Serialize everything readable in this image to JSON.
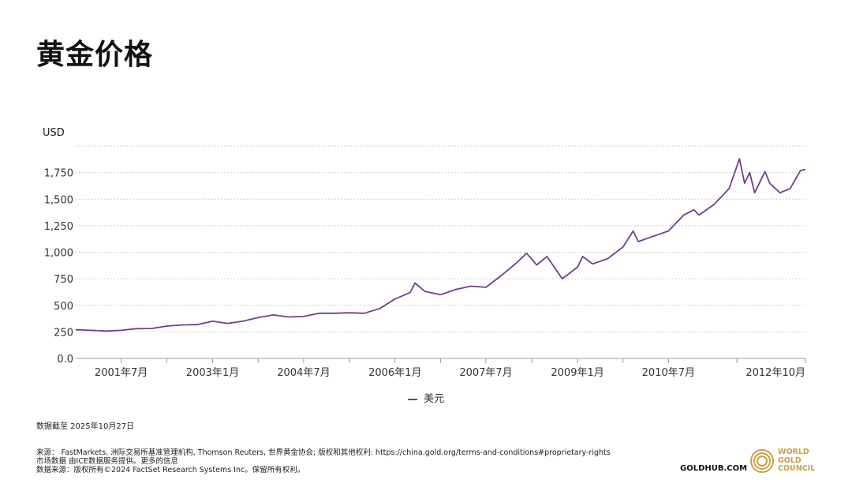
{
  "page": {
    "title": "黄金价格",
    "as_of": "数据截至 2025年10月27日",
    "footer_lines": [
      "来源： FastMarkets, 洲际交易所基准管理机构, Thomson Reuters, 世界黄金协会; 版权和其他权利: https://china.gold.org/terms-and-conditions#proprietary-rights",
      "市场数据 由ICE数据服务提供。更多的信息",
      "数据来源：版权所有©2024 FactSet Research Systems Inc。保留所有权利。"
    ],
    "brand": "GOLDHUB.COM",
    "logo_text": [
      "WORLD",
      "GOLD",
      "COUNCIL"
    ],
    "colors": {
      "series": "#6f3f8f",
      "gold": "#c9a043"
    }
  },
  "chart_data": {
    "type": "line",
    "ylabel": "USD",
    "ylim": [
      0,
      2000
    ],
    "yticks": [
      {
        "value": 0,
        "label": "0.0"
      },
      {
        "value": 250,
        "label": "250"
      },
      {
        "value": 500,
        "label": "500"
      },
      {
        "value": 750,
        "label": "750"
      },
      {
        "value": 1000,
        "label": "1,000"
      },
      {
        "value": 1250,
        "label": "1,250"
      },
      {
        "value": 1500,
        "label": "1,500"
      },
      {
        "value": 1750,
        "label": "1,750"
      }
    ],
    "xlim": [
      "2000-10-01",
      "2012-10-01"
    ],
    "xticks": [
      {
        "date": "2001-07-01",
        "label": "2001年7月"
      },
      {
        "date": "2003-01-01",
        "label": "2003年1月"
      },
      {
        "date": "2004-07-01",
        "label": "2004年7月"
      },
      {
        "date": "2006-01-01",
        "label": "2006年1月"
      },
      {
        "date": "2007-07-01",
        "label": "2007年7月"
      },
      {
        "date": "2009-01-01",
        "label": "2009年1月"
      },
      {
        "date": "2010-07-01",
        "label": "2010年7月"
      },
      {
        "date": "2012-10-01",
        "label": "2012年10月"
      }
    ],
    "grid": true,
    "legend_position": "bottom-center",
    "series": [
      {
        "name": "美元",
        "color": "#6f3f8f",
        "points": [
          [
            "2000-10-01",
            270
          ],
          [
            "2001-01-01",
            265
          ],
          [
            "2001-04-01",
            258
          ],
          [
            "2001-07-01",
            265
          ],
          [
            "2001-10-01",
            280
          ],
          [
            "2002-01-01",
            282
          ],
          [
            "2002-04-01",
            305
          ],
          [
            "2002-07-01",
            315
          ],
          [
            "2002-10-01",
            318
          ],
          [
            "2003-01-01",
            350
          ],
          [
            "2003-04-01",
            330
          ],
          [
            "2003-07-01",
            350
          ],
          [
            "2003-10-01",
            385
          ],
          [
            "2004-01-01",
            410
          ],
          [
            "2004-04-01",
            390
          ],
          [
            "2004-07-01",
            395
          ],
          [
            "2004-10-01",
            425
          ],
          [
            "2005-01-01",
            425
          ],
          [
            "2005-04-01",
            430
          ],
          [
            "2005-07-01",
            425
          ],
          [
            "2005-10-01",
            470
          ],
          [
            "2006-01-01",
            560
          ],
          [
            "2006-04-01",
            620
          ],
          [
            "2006-05-01",
            710
          ],
          [
            "2006-07-01",
            630
          ],
          [
            "2006-10-01",
            600
          ],
          [
            "2007-01-01",
            650
          ],
          [
            "2007-04-01",
            680
          ],
          [
            "2007-07-01",
            670
          ],
          [
            "2007-10-01",
            780
          ],
          [
            "2008-01-01",
            900
          ],
          [
            "2008-03-01",
            990
          ],
          [
            "2008-05-01",
            880
          ],
          [
            "2008-07-01",
            960
          ],
          [
            "2008-10-01",
            750
          ],
          [
            "2009-01-01",
            860
          ],
          [
            "2009-02-01",
            960
          ],
          [
            "2009-04-01",
            890
          ],
          [
            "2009-07-01",
            940
          ],
          [
            "2009-10-01",
            1050
          ],
          [
            "2009-12-01",
            1200
          ],
          [
            "2010-01-01",
            1100
          ],
          [
            "2010-04-01",
            1150
          ],
          [
            "2010-07-01",
            1200
          ],
          [
            "2010-10-01",
            1350
          ],
          [
            "2010-12-01",
            1400
          ],
          [
            "2011-01-01",
            1350
          ],
          [
            "2011-04-01",
            1450
          ],
          [
            "2011-07-01",
            1600
          ],
          [
            "2011-09-01",
            1880
          ],
          [
            "2011-10-01",
            1650
          ],
          [
            "2011-11-01",
            1750
          ],
          [
            "2011-12-01",
            1560
          ],
          [
            "2012-02-01",
            1760
          ],
          [
            "2012-03-01",
            1650
          ],
          [
            "2012-05-01",
            1560
          ],
          [
            "2012-07-01",
            1600
          ],
          [
            "2012-09-01",
            1770
          ],
          [
            "2012-10-01",
            1780
          ]
        ]
      }
    ]
  }
}
